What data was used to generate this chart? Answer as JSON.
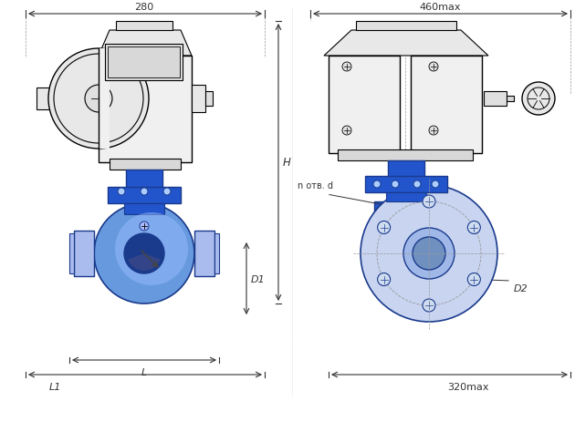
{
  "bg_color": "#ffffff",
  "line_color": "#000000",
  "blue_dark": "#1a3a8c",
  "blue_mid": "#2255cc",
  "blue_light": "#6699dd",
  "blue_very_light": "#aabbee",
  "gray_light": "#cccccc",
  "gray_mid": "#999999",
  "dim_color": "#333333",
  "fig_width": 6.3,
  "fig_height": 4.64,
  "dpi": 100,
  "dim_280_label": "280",
  "dim_460_label": "460max",
  "dim_H_label": "H",
  "dim_D1_label": "D1",
  "dim_L_label": "L",
  "dim_L1_label": "L1",
  "dim_D2_label": "D2",
  "dim_320_label": "320max",
  "dim_notv_label": "n отв. d"
}
